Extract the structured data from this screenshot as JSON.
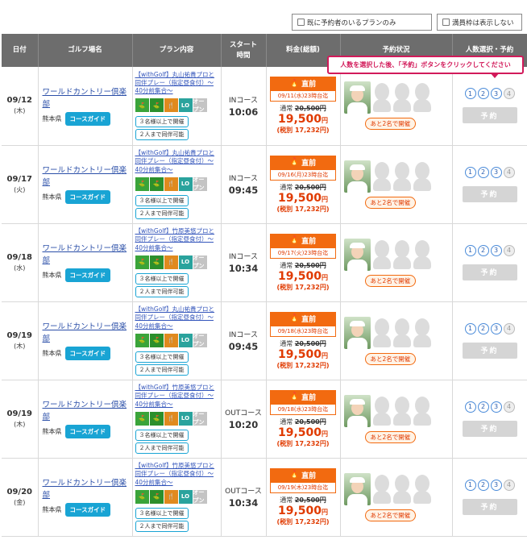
{
  "filters": {
    "only_with_reserved": "既に予約者のいるプランのみ",
    "hide_full": "満員枠は表示しない"
  },
  "tooltip": "人数を選択した後、「予約」ボタンをクリックしてください",
  "headers": {
    "date": "日付",
    "golf": "ゴルフ場名",
    "plan": "プラン内容",
    "start": "スタート\n時間",
    "price": "料金(総額)",
    "status": "予約状況",
    "select": "人数選択・予約"
  },
  "common": {
    "golf_name": "ワールドカントリー倶楽部",
    "pref": "熊本県",
    "guide": "コースガイド",
    "min3": "３名様以上で開催",
    "comp2": "２人まで同伴可能",
    "badge": "直前",
    "orig_label": "通常",
    "orig_price": "20,500円",
    "price": "19,500",
    "yen": "円",
    "tax": "(税別 17,232円)",
    "remain": "あと2名で開催",
    "reserve": "予約",
    "nums": [
      "1",
      "2",
      "3",
      "4"
    ],
    "icons": [
      "golf",
      "range",
      "food",
      "LO",
      "open-competition"
    ],
    "icon_labels": [
      "⛳",
      "⛳",
      "🍴",
      "LO",
      "オープン"
    ]
  },
  "rows": [
    {
      "date": "09/12",
      "dow": "(木)",
      "plan": "【withGolf】丸山祐貴プロと同伴プレー（指定昼食付）～40分前集合～",
      "course": "INコース",
      "time": "10:06",
      "deadline": "09/11(水)23時台迄"
    },
    {
      "date": "09/17",
      "dow": "(火)",
      "plan": "【withGolf】丸山祐貴プロと同伴プレー（指定昼食付）～40分前集合～",
      "course": "INコース",
      "time": "09:45",
      "deadline": "09/16(月)23時台迄"
    },
    {
      "date": "09/18",
      "dow": "(水)",
      "plan": "【withGolf】竹原美悠プロと同伴プレー（指定昼食付）～40分前集合～",
      "course": "INコース",
      "time": "10:34",
      "deadline": "09/17(火)23時台迄"
    },
    {
      "date": "09/19",
      "dow": "(木)",
      "plan": "【withGolf】丸山祐貴プロと同伴プレー（指定昼食付）～40分前集合～",
      "course": "INコース",
      "time": "09:45",
      "deadline": "09/18(水)23時台迄"
    },
    {
      "date": "09/19",
      "dow": "(木)",
      "plan": "【withGolf】竹原美悠プロと同伴プレー（指定昼食付）～40分前集合～",
      "course": "OUTコース",
      "time": "10:20",
      "deadline": "09/18(水)23時台迄"
    },
    {
      "date": "09/20",
      "dow": "(金)",
      "plan": "【withGolf】竹原美悠プロと同伴プレー（指定昼食付）～40分前集合～",
      "course": "OUTコース",
      "time": "10:34",
      "deadline": "09/19(木)23時台迄"
    }
  ]
}
